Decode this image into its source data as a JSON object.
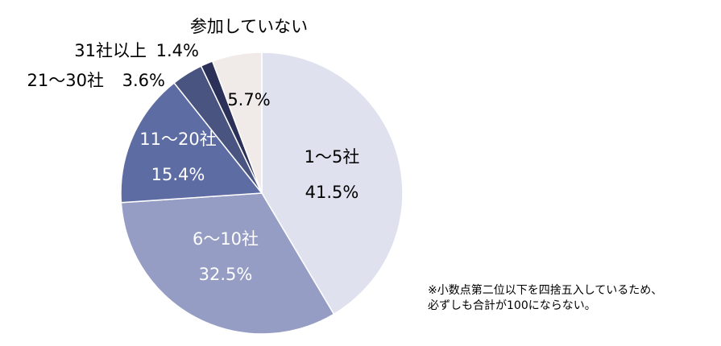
{
  "chart_data": {
    "type": "pie",
    "categories": [
      "1～5社",
      "6～10社",
      "11～20社",
      "21～30社",
      "31社以上",
      "参加していない"
    ],
    "values": [
      41.5,
      32.5,
      15.4,
      3.6,
      1.4,
      5.7
    ],
    "value_labels": [
      "41.5%",
      "32.5%",
      "15.4%",
      "3.6%",
      "1.4%",
      "5.7%"
    ],
    "colors": [
      "#DFE2EE",
      "#959DC4",
      "#5E6CA4",
      "#495480",
      "#2B3158",
      "#F0EAE8"
    ],
    "start_angle_deg": 0,
    "direction": "clockwise",
    "legend": "none"
  },
  "note": {
    "line1": "※小数点第二位以下を四捨五入しているため、",
    "line2": "必ずしも合計が100にならない。"
  }
}
